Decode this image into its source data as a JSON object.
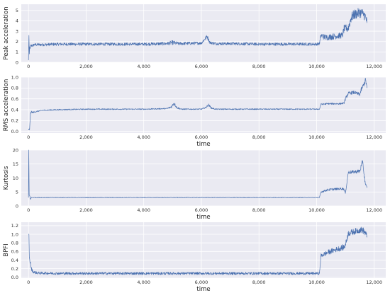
{
  "style": {
    "line_color": "#4c72b0",
    "background": "#eaeaf2",
    "grid_color": "#ffffff"
  },
  "chart_data": [
    {
      "type": "line",
      "ylabel": "Peak acceleration",
      "xlabel": "",
      "xlim": [
        -250,
        12400
      ],
      "ylim": [
        0,
        5.6
      ],
      "xticks": [
        0,
        2000,
        4000,
        6000,
        8000,
        10000,
        12000
      ],
      "xtick_labels": [
        "0",
        "2,000",
        "4,000",
        "6,000",
        "8,000",
        "10,000",
        "12,000"
      ],
      "yticks": [
        0,
        1,
        2,
        3,
        4,
        5
      ],
      "ytick_labels": [
        "0",
        "1",
        "2",
        "3",
        "4",
        "5"
      ],
      "grid": true,
      "series": [
        {
          "x": [
            0,
            15,
            30,
            45,
            60,
            80,
            120,
            200,
            500,
            1000,
            2000,
            3000,
            4000,
            4800,
            5000,
            5200,
            6000,
            6200,
            6300,
            6500,
            7000,
            8000,
            9000,
            10000,
            10100,
            10150,
            10300,
            10600,
            10900,
            10950,
            11100,
            11200,
            11300,
            11500,
            11600,
            11700,
            11750
          ],
          "y": [
            0.2,
            2.6,
            0.8,
            1.5,
            1.4,
            1.6,
            1.6,
            1.7,
            1.7,
            1.75,
            1.75,
            1.75,
            1.75,
            1.8,
            1.9,
            1.8,
            1.85,
            2.5,
            1.9,
            1.8,
            1.8,
            1.75,
            1.75,
            1.75,
            1.8,
            2.6,
            2.4,
            2.5,
            2.6,
            3.2,
            3.3,
            4.3,
            4.6,
            4.8,
            4.7,
            4.4,
            3.8
          ],
          "noise": [
            0,
            0,
            0,
            0.12,
            0.12,
            0.14,
            0.14,
            0.14,
            0.14,
            0.14,
            0.14,
            0.14,
            0.14,
            0.16,
            0.22,
            0.16,
            0.14,
            0.2,
            0.14,
            0.14,
            0.14,
            0.14,
            0.14,
            0.14,
            0.14,
            0.25,
            0.3,
            0.3,
            0.3,
            0.4,
            0.4,
            0.5,
            0.5,
            0.5,
            0.5,
            0.5,
            0.4
          ]
        }
      ]
    },
    {
      "type": "line",
      "ylabel": "RMS acceleration",
      "xlabel": "time",
      "xlim": [
        -250,
        12400
      ],
      "ylim": [
        -0.03,
        1.0
      ],
      "xticks": [
        0,
        2000,
        4000,
        6000,
        8000,
        10000,
        12000
      ],
      "xtick_labels": [
        "0",
        "2,000",
        "4,000",
        "6,000",
        "8,000",
        "10,000",
        "12,000"
      ],
      "yticks": [
        0.0,
        0.2,
        0.4,
        0.6,
        0.8,
        1.0
      ],
      "ytick_labels": [
        "0.0",
        "0.2",
        "0.4",
        "0.6",
        "0.8",
        "1.0"
      ],
      "grid": true,
      "series": [
        {
          "x": [
            0,
            40,
            70,
            100,
            150,
            300,
            500,
            1000,
            2000,
            3000,
            4000,
            4800,
            4950,
            5050,
            5150,
            5300,
            6000,
            6150,
            6250,
            6350,
            6500,
            7000,
            8000,
            9000,
            10000,
            10100,
            10150,
            10400,
            10800,
            10950,
            11000,
            11100,
            11300,
            11500,
            11550,
            11650,
            11700,
            11750
          ],
          "y": [
            0.03,
            0.04,
            0.33,
            0.36,
            0.35,
            0.37,
            0.39,
            0.4,
            0.41,
            0.41,
            0.41,
            0.42,
            0.45,
            0.52,
            0.44,
            0.41,
            0.41,
            0.44,
            0.49,
            0.43,
            0.41,
            0.41,
            0.41,
            0.41,
            0.41,
            0.41,
            0.5,
            0.51,
            0.51,
            0.52,
            0.6,
            0.7,
            0.72,
            0.68,
            0.77,
            0.88,
            0.95,
            0.8
          ],
          "noise": [
            0.02,
            0.02,
            0.02,
            0.015,
            0.015,
            0.01,
            0.01,
            0.01,
            0.01,
            0.01,
            0.01,
            0.01,
            0.02,
            0.03,
            0.02,
            0.01,
            0.01,
            0.015,
            0.02,
            0.015,
            0.01,
            0.01,
            0.01,
            0.01,
            0.01,
            0.01,
            0.015,
            0.015,
            0.015,
            0.015,
            0.03,
            0.03,
            0.03,
            0.03,
            0.04,
            0.04,
            0.05,
            0.05
          ]
        }
      ]
    },
    {
      "type": "line",
      "ylabel": "Kurtosis",
      "xlabel": "time",
      "xlim": [
        -250,
        12400
      ],
      "ylim": [
        0,
        20
      ],
      "xticks": [
        0,
        2000,
        4000,
        6000,
        8000,
        10000,
        12000
      ],
      "xtick_labels": [
        "0",
        "2,000",
        "4,000",
        "6,000",
        "8,000",
        "10,000",
        "12,000"
      ],
      "yticks": [
        0,
        5,
        10,
        15,
        20
      ],
      "ytick_labels": [
        "0",
        "5",
        "10",
        "15",
        "20"
      ],
      "grid": true,
      "series": [
        {
          "x": [
            0,
            10,
            25,
            45,
            70,
            100,
            150,
            300,
            1000,
            2000,
            4000,
            6000,
            8000,
            10000,
            10100,
            10150,
            10400,
            10600,
            10900,
            10950,
            11000,
            11100,
            11400,
            11500,
            11600,
            11650,
            11700,
            11750
          ],
          "y": [
            3,
            20,
            4,
            3.5,
            2.4,
            3.0,
            3.0,
            3.0,
            3.0,
            3.0,
            3.0,
            3.0,
            3.0,
            3.0,
            3.0,
            5.0,
            5.8,
            6.0,
            6.2,
            6.0,
            4.5,
            12,
            12.3,
            12.5,
            16,
            11,
            7.5,
            6.5
          ],
          "noise": [
            0,
            0,
            0,
            0.3,
            0.2,
            0.1,
            0.1,
            0.1,
            0.1,
            0.1,
            0.1,
            0.1,
            0.1,
            0.1,
            0.1,
            0.3,
            0.4,
            0.4,
            0.4,
            0.4,
            0.4,
            0.6,
            0.6,
            0.8,
            1.0,
            0.8,
            0.6,
            0.5
          ]
        }
      ]
    },
    {
      "type": "line",
      "ylabel": "BPFI",
      "xlabel": "time",
      "xlim": [
        -250,
        12400
      ],
      "ylim": [
        -0.02,
        1.28
      ],
      "xticks": [
        0,
        2000,
        4000,
        6000,
        8000,
        10000,
        12000
      ],
      "xtick_labels": [
        "0",
        "2,000",
        "4,000",
        "6,000",
        "8,000",
        "10,000",
        "12,000"
      ],
      "yticks": [
        0.0,
        0.2,
        0.4,
        0.6,
        0.8,
        1.0,
        1.2
      ],
      "ytick_labels": [
        "0.0",
        "0.2",
        "0.4",
        "0.6",
        "0.8",
        "1.0",
        "1.2"
      ],
      "grid": true,
      "series": [
        {
          "x": [
            0,
            15,
            30,
            60,
            100,
            150,
            300,
            1000,
            2000,
            4000,
            6000,
            8000,
            10000,
            10100,
            10150,
            10400,
            10700,
            10950,
            11000,
            11100,
            11300,
            11500,
            11600,
            11700,
            11750
          ],
          "y": [
            1.0,
            1.0,
            0.45,
            0.35,
            0.2,
            0.13,
            0.1,
            0.09,
            0.09,
            0.09,
            0.09,
            0.09,
            0.09,
            0.09,
            0.5,
            0.58,
            0.65,
            0.7,
            0.75,
            1.02,
            1.06,
            1.1,
            1.1,
            1.02,
            0.95
          ],
          "noise": [
            0,
            0,
            0.03,
            0.04,
            0.04,
            0.03,
            0.03,
            0.03,
            0.03,
            0.03,
            0.03,
            0.03,
            0.03,
            0.03,
            0.05,
            0.06,
            0.06,
            0.07,
            0.07,
            0.07,
            0.07,
            0.07,
            0.08,
            0.07,
            0.06
          ]
        }
      ]
    }
  ]
}
